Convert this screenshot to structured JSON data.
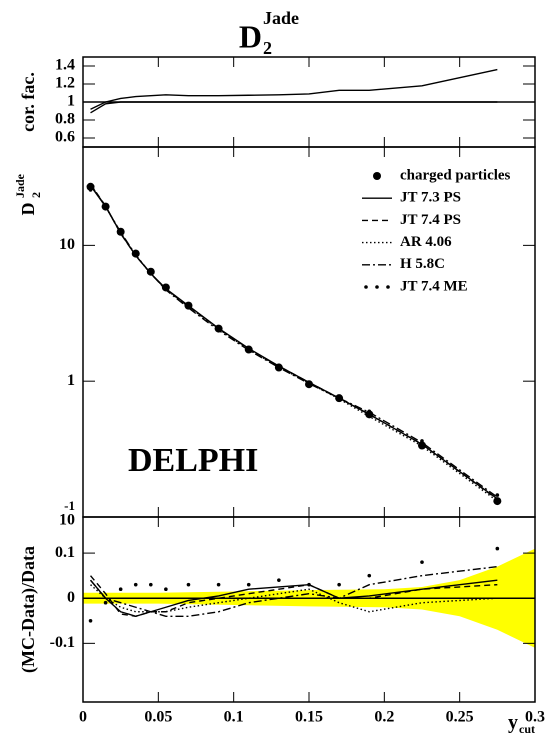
{
  "title": {
    "main": "D",
    "sub": "2",
    "sup": "Jade"
  },
  "chart_data": [
    {
      "type": "line",
      "ylabel": "cor. fac.",
      "x": [
        0.005,
        0.015,
        0.025,
        0.035,
        0.045,
        0.055,
        0.07,
        0.09,
        0.11,
        0.13,
        0.15,
        0.17,
        0.19,
        0.225,
        0.275
      ],
      "ylim": [
        0.5,
        1.5
      ],
      "yticks": [
        0.6,
        0.8,
        1,
        1.2,
        1.4
      ],
      "reference": 1,
      "series": [
        {
          "color": "#000000",
          "linestyle": "solid",
          "values": [
            0.92,
            1.0,
            1.04,
            1.06,
            1.07,
            1.08,
            1.07,
            1.07,
            1.075,
            1.08,
            1.09,
            1.13,
            1.13,
            1.18,
            1.36
          ]
        },
        {
          "color": "#000000",
          "linestyle": "solid",
          "values": [
            0.88,
            0.98,
            1.0,
            1.0,
            1.0,
            1.0,
            1.0,
            1.0,
            1.0,
            1.0,
            1.0,
            1.0,
            1.0,
            1.0,
            1.0
          ]
        }
      ]
    },
    {
      "type": "line",
      "log_scale": true,
      "annotation": "DELPHI",
      "legend": "upper right",
      "ylabel": {
        "main": "D",
        "sub": "2",
        "sup": "Jade"
      },
      "x": [
        0.005,
        0.015,
        0.025,
        0.035,
        0.045,
        0.055,
        0.07,
        0.09,
        0.11,
        0.13,
        0.15,
        0.17,
        0.19,
        0.225,
        0.275
      ],
      "ylim": [
        0.1,
        53
      ],
      "yticks": [
        10,
        1,
        {
          "value": 0.1,
          "label": "10",
          "sup": "-1"
        }
      ],
      "series": [
        {
          "name": "charged particles",
          "color": "#000000",
          "linestyle": "points",
          "values": [
            27,
            19.3,
            12.6,
            8.7,
            6.4,
            4.9,
            3.6,
            2.44,
            1.71,
            1.26,
            0.95,
            0.75,
            0.57,
            0.336,
            0.131
          ]
        },
        {
          "name": "JT 7.3 PS",
          "color": "#000000",
          "linestyle": "solid",
          "values": [
            27.5,
            19.3,
            12.3,
            8.4,
            6.2,
            4.8,
            3.6,
            2.45,
            1.74,
            1.29,
            0.98,
            0.75,
            0.57,
            0.343,
            0.136
          ]
        },
        {
          "name": "JT 7.4 PS",
          "color": "#000000",
          "linestyle": "dashed",
          "values": [
            28.2,
            19.5,
            12.2,
            8.4,
            6.2,
            4.75,
            3.56,
            2.44,
            1.73,
            1.29,
            0.98,
            0.75,
            0.57,
            0.343,
            0.135
          ]
        },
        {
          "name": "AR 4.06",
          "color": "#000000",
          "linestyle": "dotted",
          "values": [
            27.8,
            19.3,
            12.3,
            8.4,
            6.2,
            4.75,
            3.53,
            2.42,
            1.71,
            1.27,
            0.97,
            0.74,
            0.55,
            0.333,
            0.131
          ]
        },
        {
          "name": "H 5.8C",
          "color": "#000000",
          "linestyle": "dashdot",
          "values": [
            28.1,
            19.3,
            12.5,
            8.5,
            6.2,
            4.7,
            3.46,
            2.37,
            1.69,
            1.26,
            0.96,
            0.75,
            0.59,
            0.353,
            0.14
          ]
        },
        {
          "name": "JT 7.4 ME",
          "color": "#000000",
          "linestyle": "markers",
          "values": [
            25.6,
            19.1,
            12.9,
            9.0,
            6.6,
            5.0,
            3.7,
            2.51,
            1.76,
            1.31,
            0.98,
            0.77,
            0.6,
            0.363,
            0.145
          ]
        }
      ]
    },
    {
      "type": "line",
      "ylabel": "(MC-Data)/Data",
      "xlabel": {
        "main": "y",
        "sub": "cut"
      },
      "x": [
        0.005,
        0.015,
        0.025,
        0.035,
        0.045,
        0.055,
        0.07,
        0.09,
        0.11,
        0.13,
        0.15,
        0.17,
        0.19,
        0.225,
        0.275
      ],
      "xlim": [
        0,
        0.3
      ],
      "xticks": [
        0,
        0.05,
        0.1,
        0.15,
        0.2,
        0.25,
        0.3
      ],
      "ylim": [
        -0.23,
        0.18
      ],
      "yticks": [
        -0.1,
        0,
        0.1
      ],
      "reference": 0,
      "band_x": [
        0,
        0.05,
        0.1,
        0.15,
        0.2,
        0.225,
        0.25,
        0.275,
        0.3
      ],
      "error_band": [
        0.012,
        0.012,
        0.015,
        0.018,
        0.02,
        0.025,
        0.04,
        0.07,
        0.11
      ],
      "band_color": "#ffff00",
      "series": [
        {
          "color": "#000000",
          "linestyle": "solid",
          "values": [
            0.04,
            0.0,
            -0.03,
            -0.04,
            -0.03,
            -0.02,
            -0.005,
            0.005,
            0.02,
            0.025,
            0.03,
            0.0,
            0.005,
            0.02,
            0.04
          ]
        },
        {
          "color": "#000000",
          "linestyle": "dashed",
          "values": [
            0.05,
            0.01,
            -0.035,
            -0.04,
            -0.03,
            -0.03,
            -0.01,
            0.0,
            0.01,
            0.02,
            0.03,
            0.0,
            0.0,
            0.02,
            0.03
          ]
        },
        {
          "color": "#000000",
          "linestyle": "dotted",
          "values": [
            0.03,
            0.0,
            -0.02,
            -0.03,
            -0.03,
            -0.03,
            -0.02,
            -0.01,
            0.0,
            0.01,
            0.02,
            -0.01,
            -0.03,
            -0.01,
            0.0
          ]
        },
        {
          "color": "#000000",
          "linestyle": "dashdot",
          "values": [
            0.04,
            0.0,
            -0.01,
            -0.02,
            -0.03,
            -0.04,
            -0.04,
            -0.03,
            -0.01,
            0.0,
            0.01,
            0.0,
            0.03,
            0.05,
            0.07
          ]
        },
        {
          "color": "#000000",
          "linestyle": "markers",
          "values": [
            -0.05,
            -0.01,
            0.02,
            0.03,
            0.03,
            0.02,
            0.03,
            0.03,
            0.03,
            0.04,
            0.03,
            0.03,
            0.05,
            0.08,
            0.11
          ]
        }
      ]
    }
  ]
}
